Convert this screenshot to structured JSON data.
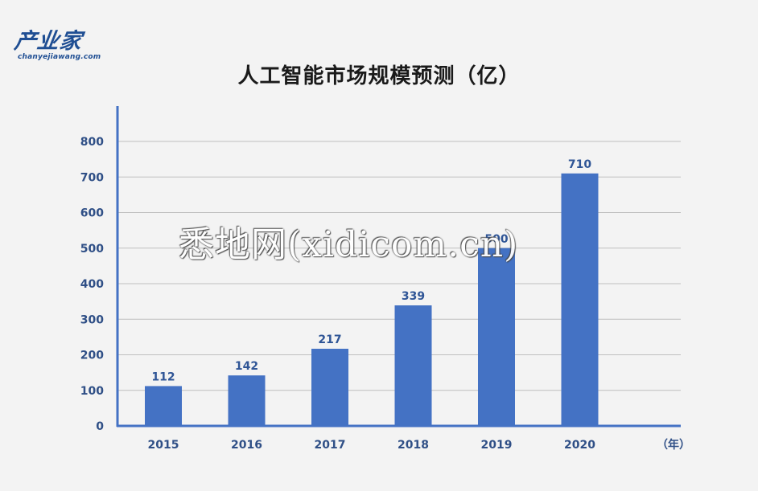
{
  "logo": {
    "main": "产业家",
    "sub": "chanyejiawang.com"
  },
  "watermark": "悉地网(xidicom.cn)",
  "colors": {
    "bar": "#4472c4",
    "axis": "#4472c4",
    "grid": "#bfbfbf",
    "background": "#f3f3f3"
  },
  "chart_data": {
    "type": "bar",
    "title": "人工智能市场规模预测（亿）",
    "categories": [
      "2015",
      "2016",
      "2017",
      "2018",
      "2019",
      "2020"
    ],
    "x_unit_label": "（年）",
    "values": [
      112,
      142,
      217,
      339,
      500,
      710
    ],
    "data_labels": [
      "112",
      "142",
      "217",
      "339",
      "500",
      "710"
    ],
    "y_ticks": [
      "0",
      "100",
      "200",
      "300",
      "400",
      "500",
      "600",
      "700",
      "800"
    ],
    "ylim": [
      0,
      800
    ],
    "grid": true,
    "legend": "none"
  }
}
